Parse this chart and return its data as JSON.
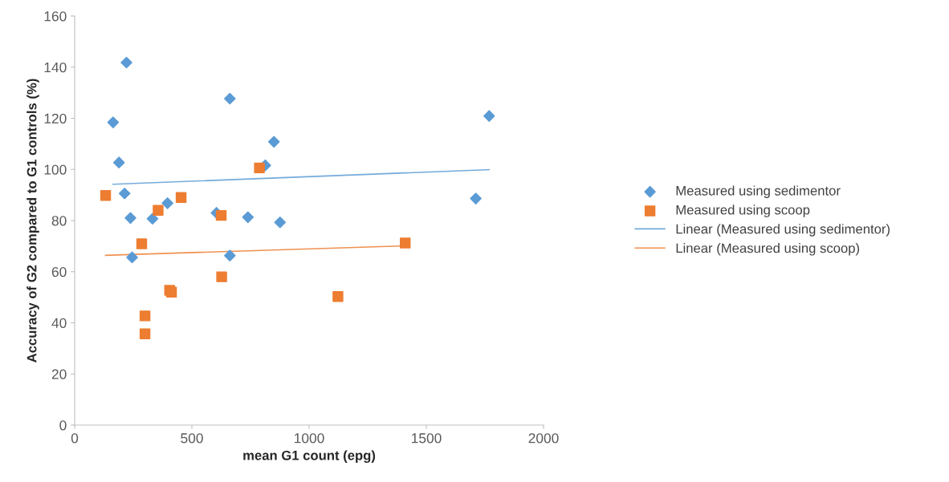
{
  "chart_data": {
    "type": "scatter",
    "xlabel": "mean G1 count (epg)",
    "ylabel": "Accuracy of G2 compared to G1 controls (%)",
    "xlim": [
      0,
      2000
    ],
    "xticks": [
      0,
      500,
      1000,
      1500,
      2000
    ],
    "ylim": [
      0,
      160
    ],
    "yticks": [
      0,
      20,
      40,
      60,
      80,
      100,
      120,
      140,
      160
    ],
    "grid": false,
    "legend": "right",
    "series": [
      {
        "name": "Measured using sedimentor",
        "marker": "diamond",
        "color": "#5b9bd5",
        "x": [
          221,
          164,
          189,
          213,
          238,
          332,
          396,
          245,
          605,
          662,
          662,
          739,
          813,
          850,
          876,
          1768,
          1711
        ],
        "values": [
          141.8,
          118.4,
          102.7,
          90.6,
          81.0,
          80.7,
          86.8,
          65.6,
          83.0,
          127.7,
          66.3,
          81.3,
          101.6,
          110.8,
          79.3,
          120.9,
          88.6
        ]
      },
      {
        "name": "Measured using scoop",
        "marker": "square",
        "color": "#ed7d31",
        "x": [
          132,
          286,
          300,
          300,
          356,
          454,
          405,
          413,
          625,
          627,
          788,
          1123,
          1410
        ],
        "values": [
          89.8,
          70.9,
          42.7,
          35.7,
          84.0,
          89.0,
          52.7,
          52.0,
          82.0,
          58.0,
          100.6,
          50.3,
          71.2
        ]
      },
      {
        "name": "Linear (Measured using sedimentor)",
        "type": "line",
        "marker": "none",
        "color": "#5b9bd5",
        "x": [
          164,
          1768
        ],
        "values": [
          94.2,
          99.9
        ]
      },
      {
        "name": "Linear (Measured using scoop)",
        "type": "line",
        "marker": "none",
        "color": "#ed7d31",
        "x": [
          132,
          1410
        ],
        "values": [
          66.4,
          70.1
        ]
      }
    ]
  }
}
